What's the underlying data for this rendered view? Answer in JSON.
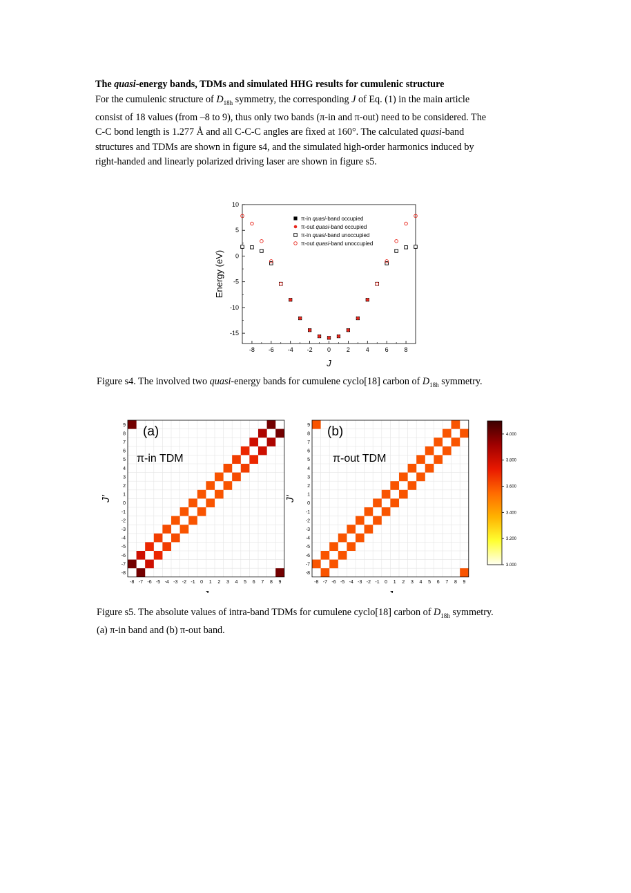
{
  "section": {
    "heading_parts": [
      "The ",
      "quasi",
      "-energy bands, TDMs and simulated HHG results for cumulenic structure"
    ],
    "paragraph_lines": [
      [
        "For the cumulenic structure of ",
        "D",
        "18h",
        " symmetry, the corresponding ",
        "J",
        " of Eq. (1) in the main article"
      ],
      [
        "consist of 18 values (from –8 to 9), thus only two bands (π-in and π-out) need to be considered. The"
      ],
      [
        "C-C bond length is 1.277 Å and all C-C-C angles are fixed at 160°. The calculated ",
        "quasi",
        "-band"
      ],
      [
        "structures and TDMs are shown in figure s4, and the simulated high-order harmonics induced by"
      ],
      [
        "right-handed and linearly polarized driving laser are shown in figure s5."
      ]
    ]
  },
  "figure_s4": {
    "caption_parts": [
      "Figure s4. The involved two ",
      "quasi",
      "-energy bands for cumulene cyclo[18] carbon of ",
      "D",
      "18h",
      " symmetry."
    ]
  },
  "figure_s5": {
    "caption_line1": [
      "Figure s5. The absolute values of intra-band TDMs for cumulene cyclo[18] carbon of ",
      "D",
      "18h",
      " symmetry."
    ],
    "caption_line2": "(a) π-in band and (b) π-out band."
  },
  "chart_data": [
    {
      "type": "scatter",
      "title": "",
      "xlabel": "J",
      "ylabel": "Energy (eV)",
      "xlim": [
        -9,
        9
      ],
      "ylim": [
        -17,
        10
      ],
      "xticks": [
        -8,
        -6,
        -4,
        -2,
        0,
        2,
        4,
        6,
        8
      ],
      "yticks": [
        10,
        5,
        0,
        -5,
        -10,
        -15
      ],
      "legend_position": "top-center",
      "series": [
        {
          "name": "π-in quasi-band occupied",
          "marker": "filled-square",
          "color": "#000000",
          "x": [
            -4,
            -3,
            -2,
            -1,
            0,
            1,
            2,
            3,
            4
          ],
          "y": [
            -8.5,
            -12.1,
            -14.4,
            -15.6,
            -15.9,
            -15.6,
            -14.4,
            -12.1,
            -8.5
          ]
        },
        {
          "name": "π-out quasi-band occupied",
          "marker": "filled-circle",
          "color": "#e8281e",
          "x": [
            -4,
            -3,
            -2,
            -1,
            0,
            1,
            2,
            3,
            4
          ],
          "y": [
            -8.5,
            -12.1,
            -14.4,
            -15.6,
            -15.9,
            -15.6,
            -14.4,
            -12.1,
            -8.5
          ]
        },
        {
          "name": "π-in quasi-band unoccupied",
          "marker": "open-square",
          "color": "#000000",
          "x": [
            -9,
            -8,
            -7,
            -6,
            -5,
            5,
            6,
            7,
            8,
            9
          ],
          "y": [
            1.8,
            1.7,
            1.0,
            -1.4,
            -5.4,
            -5.4,
            -1.4,
            1.0,
            1.7,
            1.8
          ]
        },
        {
          "name": "π-out quasi-band unoccupied",
          "marker": "open-circle",
          "color": "#e8281e",
          "x": [
            -9,
            -8,
            -7,
            -6,
            -5,
            5,
            6,
            7,
            8,
            9
          ],
          "y": [
            7.8,
            6.3,
            2.9,
            -1.0,
            -5.4,
            -5.4,
            -1.0,
            2.9,
            6.3,
            7.8
          ]
        }
      ]
    },
    {
      "type": "heatmap",
      "panel_label": "(a)",
      "title": "π-in TDM",
      "xlabel": "J",
      "ylabel": "J’",
      "x": [
        -8,
        -7,
        -6,
        -5,
        -4,
        -3,
        -2,
        -1,
        0,
        1,
        2,
        3,
        4,
        5,
        6,
        7,
        8,
        9
      ],
      "y": [
        -8,
        -7,
        -6,
        -5,
        -4,
        -3,
        -2,
        -1,
        0,
        1,
        2,
        3,
        4,
        5,
        6,
        7,
        8,
        9
      ],
      "cells": [
        {
          "J": -8,
          "Jp": -7,
          "value": 4.0
        },
        {
          "J": -7,
          "Jp": -8,
          "value": 4.0
        },
        {
          "J": -7,
          "Jp": -6,
          "value": 3.8
        },
        {
          "J": -6,
          "Jp": -7,
          "value": 3.8
        },
        {
          "J": -6,
          "Jp": -5,
          "value": 3.7
        },
        {
          "J": -5,
          "Jp": -6,
          "value": 3.7
        },
        {
          "J": -5,
          "Jp": -4,
          "value": 3.65
        },
        {
          "J": -4,
          "Jp": -5,
          "value": 3.65
        },
        {
          "J": -4,
          "Jp": -3,
          "value": 3.62
        },
        {
          "J": -3,
          "Jp": -4,
          "value": 3.62
        },
        {
          "J": -3,
          "Jp": -2,
          "value": 3.6
        },
        {
          "J": -2,
          "Jp": -3,
          "value": 3.6
        },
        {
          "J": -2,
          "Jp": -1,
          "value": 3.6
        },
        {
          "J": -1,
          "Jp": -2,
          "value": 3.6
        },
        {
          "J": -1,
          "Jp": 0,
          "value": 3.6
        },
        {
          "J": 0,
          "Jp": -1,
          "value": 3.6
        },
        {
          "J": 0,
          "Jp": 1,
          "value": 3.6
        },
        {
          "J": 1,
          "Jp": 0,
          "value": 3.6
        },
        {
          "J": 1,
          "Jp": 2,
          "value": 3.6
        },
        {
          "J": 2,
          "Jp": 1,
          "value": 3.6
        },
        {
          "J": 2,
          "Jp": 3,
          "value": 3.6
        },
        {
          "J": 3,
          "Jp": 2,
          "value": 3.6
        },
        {
          "J": 3,
          "Jp": 4,
          "value": 3.62
        },
        {
          "J": 4,
          "Jp": 3,
          "value": 3.62
        },
        {
          "J": 4,
          "Jp": 5,
          "value": 3.65
        },
        {
          "J": 5,
          "Jp": 4,
          "value": 3.65
        },
        {
          "J": 5,
          "Jp": 6,
          "value": 3.7
        },
        {
          "J": 6,
          "Jp": 5,
          "value": 3.7
        },
        {
          "J": 6,
          "Jp": 7,
          "value": 3.8
        },
        {
          "J": 7,
          "Jp": 6,
          "value": 3.8
        },
        {
          "J": 7,
          "Jp": 8,
          "value": 3.88
        },
        {
          "J": 8,
          "Jp": 7,
          "value": 3.88
        },
        {
          "J": 8,
          "Jp": 9,
          "value": 4.0
        },
        {
          "J": 9,
          "Jp": 8,
          "value": 4.0
        },
        {
          "J": -8,
          "Jp": 9,
          "value": 4.0
        },
        {
          "J": 9,
          "Jp": -8,
          "value": 4.0
        }
      ]
    },
    {
      "type": "heatmap",
      "panel_label": "(b)",
      "title": "π-out TDM",
      "xlabel": "J",
      "ylabel": "J’",
      "x": [
        -8,
        -7,
        -6,
        -5,
        -4,
        -3,
        -2,
        -1,
        0,
        1,
        2,
        3,
        4,
        5,
        6,
        7,
        8,
        9
      ],
      "y": [
        -8,
        -7,
        -6,
        -5,
        -4,
        -3,
        -2,
        -1,
        0,
        1,
        2,
        3,
        4,
        5,
        6,
        7,
        8,
        9
      ],
      "cells": [
        {
          "J": -8,
          "Jp": -7,
          "value": 3.6
        },
        {
          "J": -7,
          "Jp": -8,
          "value": 3.6
        },
        {
          "J": -7,
          "Jp": -6,
          "value": 3.6
        },
        {
          "J": -6,
          "Jp": -7,
          "value": 3.6
        },
        {
          "J": -6,
          "Jp": -5,
          "value": 3.6
        },
        {
          "J": -5,
          "Jp": -6,
          "value": 3.6
        },
        {
          "J": -5,
          "Jp": -4,
          "value": 3.6
        },
        {
          "J": -4,
          "Jp": -5,
          "value": 3.6
        },
        {
          "J": -4,
          "Jp": -3,
          "value": 3.6
        },
        {
          "J": -3,
          "Jp": -4,
          "value": 3.6
        },
        {
          "J": -3,
          "Jp": -2,
          "value": 3.6
        },
        {
          "J": -2,
          "Jp": -3,
          "value": 3.6
        },
        {
          "J": -2,
          "Jp": -1,
          "value": 3.6
        },
        {
          "J": -1,
          "Jp": -2,
          "value": 3.6
        },
        {
          "J": -1,
          "Jp": 0,
          "value": 3.6
        },
        {
          "J": 0,
          "Jp": -1,
          "value": 3.6
        },
        {
          "J": 0,
          "Jp": 1,
          "value": 3.6
        },
        {
          "J": 1,
          "Jp": 0,
          "value": 3.6
        },
        {
          "J": 1,
          "Jp": 2,
          "value": 3.6
        },
        {
          "J": 2,
          "Jp": 1,
          "value": 3.6
        },
        {
          "J": 2,
          "Jp": 3,
          "value": 3.6
        },
        {
          "J": 3,
          "Jp": 2,
          "value": 3.6
        },
        {
          "J": 3,
          "Jp": 4,
          "value": 3.6
        },
        {
          "J": 4,
          "Jp": 3,
          "value": 3.6
        },
        {
          "J": 4,
          "Jp": 5,
          "value": 3.6
        },
        {
          "J": 5,
          "Jp": 4,
          "value": 3.6
        },
        {
          "J": 5,
          "Jp": 6,
          "value": 3.6
        },
        {
          "J": 6,
          "Jp": 5,
          "value": 3.6
        },
        {
          "J": 6,
          "Jp": 7,
          "value": 3.6
        },
        {
          "J": 7,
          "Jp": 6,
          "value": 3.6
        },
        {
          "J": 7,
          "Jp": 8,
          "value": 3.6
        },
        {
          "J": 8,
          "Jp": 7,
          "value": 3.6
        },
        {
          "J": 8,
          "Jp": 9,
          "value": 3.6
        },
        {
          "J": 9,
          "Jp": 8,
          "value": 3.6
        },
        {
          "J": -8,
          "Jp": 9,
          "value": 3.6
        },
        {
          "J": 9,
          "Jp": -8,
          "value": 3.6
        }
      ]
    }
  ],
  "colorbar": {
    "ticks": [
      "4.000",
      "3.800",
      "3.600",
      "3.400",
      "3.200",
      "3.000"
    ],
    "tick_values": [
      4.0,
      3.8,
      3.6,
      3.4,
      3.2,
      3.0
    ],
    "range": [
      3.0,
      4.1
    ],
    "colors": [
      "#fffff2",
      "#ffff30",
      "#ffb200",
      "#ff6a00",
      "#e81800",
      "#a00000",
      "#3c0000"
    ]
  }
}
